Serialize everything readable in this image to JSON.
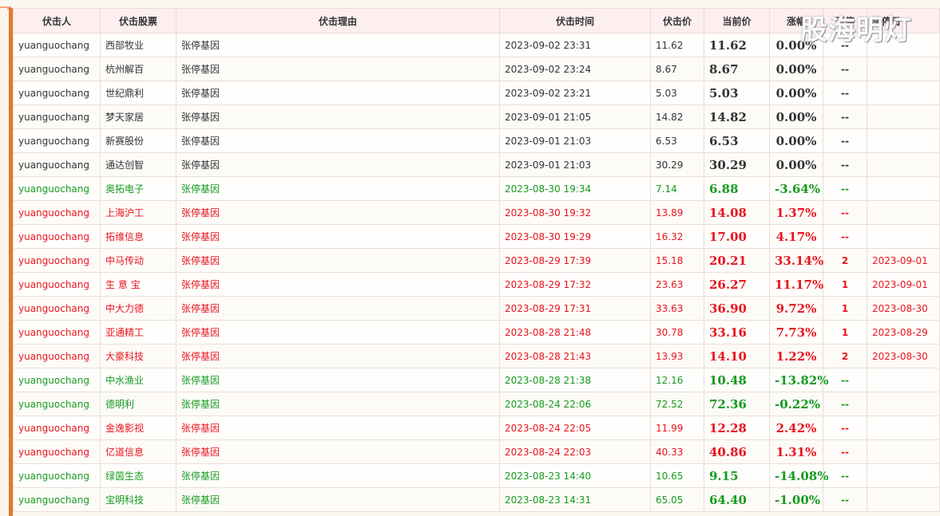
{
  "columns": {
    "user": "伏击人",
    "stock": "伏击股票",
    "reason": "伏击理由",
    "time": "伏击时间",
    "price": "伏击价",
    "current": "当前价",
    "change": "涨幅",
    "limit_count": "涨停",
    "limit_date": "涨停日"
  },
  "watermark": "股海明灯",
  "rows": [
    {
      "user": "yuanguochang",
      "stock": "西部牧业",
      "reason": "张停基因",
      "time": "2023-09-02 23:31",
      "price": "11.62",
      "current": "11.62",
      "change": "0.00%",
      "count": "--",
      "date": "",
      "trend": "flat"
    },
    {
      "user": "yuanguochang",
      "stock": "杭州解百",
      "reason": "张停基因",
      "time": "2023-09-02 23:24",
      "price": "8.67",
      "current": "8.67",
      "change": "0.00%",
      "count": "--",
      "date": "",
      "trend": "flat"
    },
    {
      "user": "yuanguochang",
      "stock": "世纪鼎利",
      "reason": "张停基因",
      "time": "2023-09-02 23:21",
      "price": "5.03",
      "current": "5.03",
      "change": "0.00%",
      "count": "--",
      "date": "",
      "trend": "flat"
    },
    {
      "user": "yuanguochang",
      "stock": "梦天家居",
      "reason": "张停基因",
      "time": "2023-09-01 21:05",
      "price": "14.82",
      "current": "14.82",
      "change": "0.00%",
      "count": "--",
      "date": "",
      "trend": "flat"
    },
    {
      "user": "yuanguochang",
      "stock": "新赛股份",
      "reason": "张停基因",
      "time": "2023-09-01 21:03",
      "price": "6.53",
      "current": "6.53",
      "change": "0.00%",
      "count": "--",
      "date": "",
      "trend": "flat"
    },
    {
      "user": "yuanguochang",
      "stock": "通达创智",
      "reason": "张停基因",
      "time": "2023-09-01 21:03",
      "price": "30.29",
      "current": "30.29",
      "change": "0.00%",
      "count": "--",
      "date": "",
      "trend": "flat"
    },
    {
      "user": "yuanguochang",
      "stock": "奥拓电子",
      "reason": "张停基因",
      "time": "2023-08-30 19:34",
      "price": "7.14",
      "current": "6.88",
      "change": "-3.64%",
      "count": "--",
      "date": "",
      "trend": "down"
    },
    {
      "user": "yuanguochang",
      "stock": "上海沪工",
      "reason": "张停基因",
      "time": "2023-08-30 19:32",
      "price": "13.89",
      "current": "14.08",
      "change": "1.37%",
      "count": "--",
      "date": "",
      "trend": "up"
    },
    {
      "user": "yuanguochang",
      "stock": "拓维信息",
      "reason": "张停基因",
      "time": "2023-08-30 19:29",
      "price": "16.32",
      "current": "17.00",
      "change": "4.17%",
      "count": "--",
      "date": "",
      "trend": "up"
    },
    {
      "user": "yuanguochang",
      "stock": "中马传动",
      "reason": "张停基因",
      "time": "2023-08-29 17:39",
      "price": "15.18",
      "current": "20.21",
      "change": "33.14%",
      "count": "2",
      "date": "2023-09-01",
      "trend": "up"
    },
    {
      "user": "yuanguochang",
      "stock": "生 意 宝",
      "reason": "张停基因",
      "time": "2023-08-29 17:32",
      "price": "23.63",
      "current": "26.27",
      "change": "11.17%",
      "count": "1",
      "date": "2023-09-01",
      "trend": "up"
    },
    {
      "user": "yuanguochang",
      "stock": "中大力德",
      "reason": "张停基因",
      "time": "2023-08-29 17:31",
      "price": "33.63",
      "current": "36.90",
      "change": "9.72%",
      "count": "1",
      "date": "2023-08-30",
      "trend": "up"
    },
    {
      "user": "yuanguochang",
      "stock": "亚通精工",
      "reason": "张停基因",
      "time": "2023-08-28 21:48",
      "price": "30.78",
      "current": "33.16",
      "change": "7.73%",
      "count": "1",
      "date": "2023-08-29",
      "trend": "up"
    },
    {
      "user": "yuanguochang",
      "stock": "大豪科技",
      "reason": "张停基因",
      "time": "2023-08-28 21:43",
      "price": "13.93",
      "current": "14.10",
      "change": "1.22%",
      "count": "2",
      "date": "2023-08-30",
      "trend": "up"
    },
    {
      "user": "yuanguochang",
      "stock": "中水渔业",
      "reason": "张停基因",
      "time": "2023-08-28 21:38",
      "price": "12.16",
      "current": "10.48",
      "change": "-13.82%",
      "count": "--",
      "date": "",
      "trend": "down"
    },
    {
      "user": "yuanguochang",
      "stock": "德明利",
      "reason": "张停基因",
      "time": "2023-08-24 22:06",
      "price": "72.52",
      "current": "72.36",
      "change": "-0.22%",
      "count": "--",
      "date": "",
      "trend": "down"
    },
    {
      "user": "yuanguochang",
      "stock": "金逸影视",
      "reason": "张停基因",
      "time": "2023-08-24 22:05",
      "price": "11.99",
      "current": "12.28",
      "change": "2.42%",
      "count": "--",
      "date": "",
      "trend": "up"
    },
    {
      "user": "yuanguochang",
      "stock": "亿道信息",
      "reason": "张停基因",
      "time": "2023-08-24 22:03",
      "price": "40.33",
      "current": "40.86",
      "change": "1.31%",
      "count": "--",
      "date": "",
      "trend": "up"
    },
    {
      "user": "yuanguochang",
      "stock": "绿茵生态",
      "reason": "张停基因",
      "time": "2023-08-23 14:40",
      "price": "10.65",
      "current": "9.15",
      "change": "-14.08%",
      "count": "--",
      "date": "",
      "trend": "down"
    },
    {
      "user": "yuanguochang",
      "stock": "宝明科技",
      "reason": "张停基因",
      "time": "2023-08-23 14:31",
      "price": "65.05",
      "current": "64.40",
      "change": "-1.00%",
      "count": "--",
      "date": "",
      "trend": "down"
    }
  ]
}
